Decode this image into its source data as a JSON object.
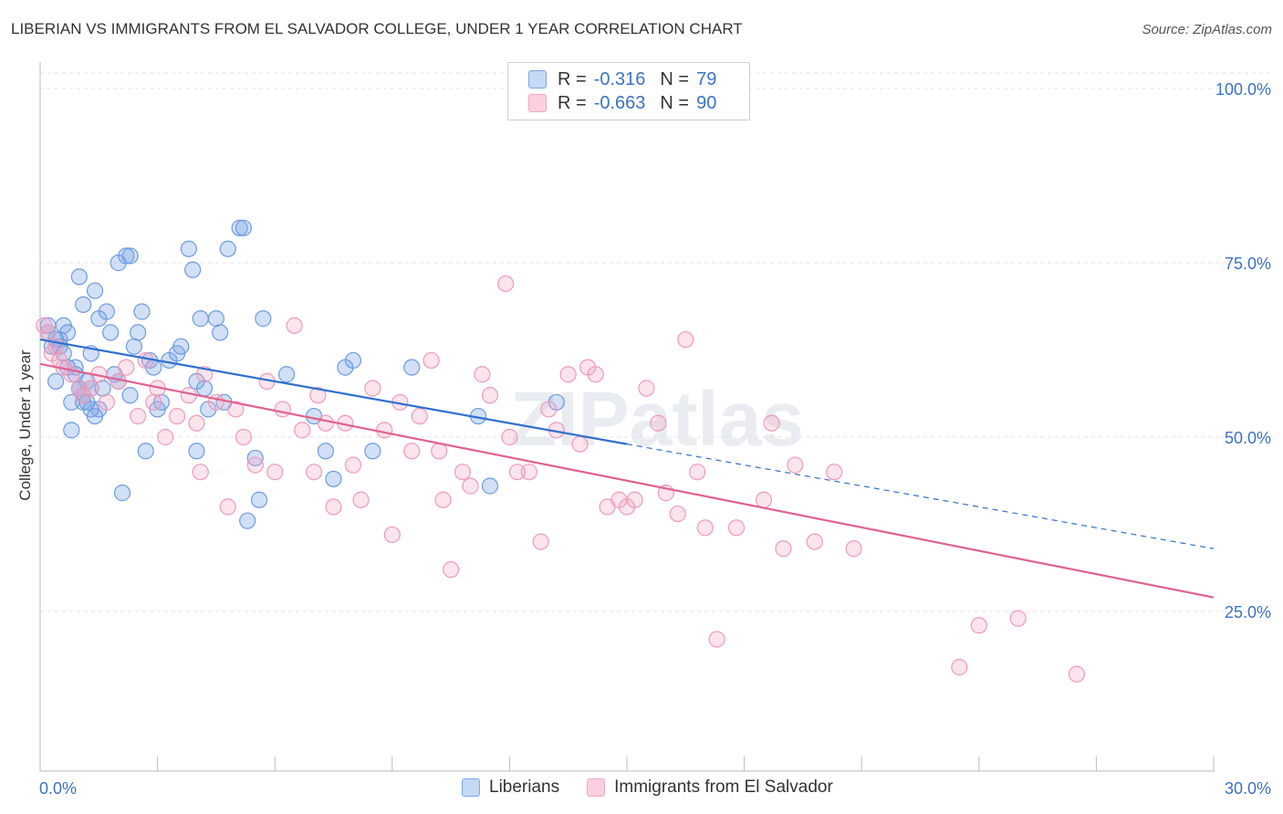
{
  "title": "LIBERIAN VS IMMIGRANTS FROM EL SALVADOR COLLEGE, UNDER 1 YEAR CORRELATION CHART",
  "source": "Source: ZipAtlas.com",
  "watermark": "ZIPatlas",
  "legend": {
    "rows": [
      {
        "r_label": "R =",
        "r_value": "-0.316",
        "n_label": "N =",
        "n_value": "79"
      },
      {
        "r_label": "R =",
        "r_value": "-0.663",
        "n_label": "N =",
        "n_value": "90"
      }
    ]
  },
  "bottom_legend": [
    "Liberians",
    "Immigrants from El Salvador"
  ],
  "chart_data": {
    "type": "scatter",
    "title": "LIBERIAN VS IMMIGRANTS FROM EL SALVADOR COLLEGE, UNDER 1 YEAR CORRELATION CHART",
    "xlabel": "",
    "ylabel": "College, Under 1 year",
    "xlim": [
      0,
      30
    ],
    "ylim": [
      0,
      105
    ],
    "x_tick_labels": [
      "0.0%",
      "30.0%"
    ],
    "y_ticks": [
      25,
      50,
      75,
      100
    ],
    "y_tick_labels": [
      "25.0%",
      "50.0%",
      "75.0%",
      "100.0%"
    ],
    "grid": true,
    "colors": {
      "Liberians": "#7aa7e8",
      "Immigrants from El Salvador": "#f3a6c0",
      "blue_line": "#2f6fcf",
      "pink_line": "#e0628e",
      "axis_label": "#3b72c4"
    },
    "series": [
      {
        "name": "Liberians",
        "points": [
          [
            0.2,
            65
          ],
          [
            0.3,
            63
          ],
          [
            0.4,
            58
          ],
          [
            0.5,
            64
          ],
          [
            0.6,
            66
          ],
          [
            0.7,
            65
          ],
          [
            0.8,
            55
          ],
          [
            0.8,
            51
          ],
          [
            0.9,
            60
          ],
          [
            1.0,
            73
          ],
          [
            1.0,
            57
          ],
          [
            1.1,
            69
          ],
          [
            1.1,
            55
          ],
          [
            1.2,
            58
          ],
          [
            1.3,
            62
          ],
          [
            1.3,
            57
          ],
          [
            1.4,
            71
          ],
          [
            1.5,
            54
          ],
          [
            1.5,
            67
          ],
          [
            1.6,
            57
          ],
          [
            1.7,
            68
          ],
          [
            1.8,
            65
          ],
          [
            1.9,
            59
          ],
          [
            2.0,
            58
          ],
          [
            2.0,
            75
          ],
          [
            2.1,
            42
          ],
          [
            2.2,
            76
          ],
          [
            2.3,
            56
          ],
          [
            2.3,
            76
          ],
          [
            2.4,
            63
          ],
          [
            2.5,
            65
          ],
          [
            2.6,
            68
          ],
          [
            2.7,
            48
          ],
          [
            2.8,
            61
          ],
          [
            2.9,
            60
          ],
          [
            3.0,
            54
          ],
          [
            3.1,
            55
          ],
          [
            3.3,
            61
          ],
          [
            3.5,
            62
          ],
          [
            3.6,
            63
          ],
          [
            3.8,
            77
          ],
          [
            3.9,
            74
          ],
          [
            4.0,
            48
          ],
          [
            4.0,
            58
          ],
          [
            4.1,
            67
          ],
          [
            4.2,
            57
          ],
          [
            4.3,
            54
          ],
          [
            4.5,
            67
          ],
          [
            4.6,
            65
          ],
          [
            4.7,
            55
          ],
          [
            4.8,
            77
          ],
          [
            5.1,
            80
          ],
          [
            5.2,
            80
          ],
          [
            5.3,
            38
          ],
          [
            5.5,
            47
          ],
          [
            5.6,
            41
          ],
          [
            5.7,
            67
          ],
          [
            6.3,
            59
          ],
          [
            7.0,
            53
          ],
          [
            7.3,
            48
          ],
          [
            7.5,
            44
          ],
          [
            7.8,
            60
          ],
          [
            8.0,
            61
          ],
          [
            8.5,
            48
          ],
          [
            9.5,
            60
          ],
          [
            11.2,
            53
          ],
          [
            11.5,
            43
          ],
          [
            13.2,
            55
          ],
          [
            0.2,
            66
          ],
          [
            0.4,
            64
          ],
          [
            0.5,
            63
          ],
          [
            0.6,
            62
          ],
          [
            0.7,
            60
          ],
          [
            0.9,
            59
          ],
          [
            1.0,
            57
          ],
          [
            1.1,
            56
          ],
          [
            1.2,
            55
          ],
          [
            1.3,
            54
          ],
          [
            1.4,
            53
          ]
        ]
      },
      {
        "name": "Immigrants from El Salvador",
        "points": [
          [
            0.1,
            66
          ],
          [
            0.2,
            65
          ],
          [
            0.3,
            62
          ],
          [
            0.4,
            63
          ],
          [
            0.5,
            61
          ],
          [
            0.6,
            60
          ],
          [
            0.8,
            59
          ],
          [
            1.0,
            57
          ],
          [
            1.1,
            56
          ],
          [
            1.3,
            57
          ],
          [
            1.5,
            59
          ],
          [
            1.7,
            55
          ],
          [
            2.0,
            58
          ],
          [
            2.2,
            60
          ],
          [
            2.5,
            53
          ],
          [
            2.7,
            61
          ],
          [
            2.9,
            55
          ],
          [
            3.0,
            57
          ],
          [
            3.2,
            50
          ],
          [
            3.5,
            53
          ],
          [
            3.8,
            56
          ],
          [
            4.0,
            52
          ],
          [
            4.1,
            45
          ],
          [
            4.2,
            59
          ],
          [
            4.5,
            55
          ],
          [
            4.8,
            40
          ],
          [
            5.0,
            54
          ],
          [
            5.2,
            50
          ],
          [
            5.5,
            46
          ],
          [
            5.8,
            58
          ],
          [
            6.0,
            45
          ],
          [
            6.2,
            54
          ],
          [
            6.5,
            66
          ],
          [
            6.7,
            51
          ],
          [
            7.0,
            45
          ],
          [
            7.1,
            56
          ],
          [
            7.3,
            52
          ],
          [
            7.5,
            40
          ],
          [
            7.8,
            52
          ],
          [
            8.0,
            46
          ],
          [
            8.2,
            41
          ],
          [
            8.5,
            57
          ],
          [
            8.8,
            51
          ],
          [
            9.0,
            36
          ],
          [
            9.2,
            55
          ],
          [
            9.5,
            48
          ],
          [
            9.7,
            53
          ],
          [
            10.0,
            61
          ],
          [
            10.2,
            48
          ],
          [
            10.3,
            41
          ],
          [
            10.5,
            31
          ],
          [
            10.8,
            45
          ],
          [
            11.0,
            43
          ],
          [
            11.3,
            59
          ],
          [
            11.5,
            56
          ],
          [
            11.9,
            72
          ],
          [
            12.0,
            50
          ],
          [
            12.2,
            45
          ],
          [
            12.5,
            45
          ],
          [
            12.8,
            35
          ],
          [
            13.0,
            54
          ],
          [
            13.2,
            51
          ],
          [
            13.5,
            59
          ],
          [
            13.8,
            49
          ],
          [
            14.0,
            60
          ],
          [
            14.2,
            59
          ],
          [
            14.5,
            40
          ],
          [
            14.8,
            41
          ],
          [
            15.0,
            40
          ],
          [
            15.2,
            41
          ],
          [
            15.5,
            57
          ],
          [
            15.8,
            52
          ],
          [
            16.0,
            42
          ],
          [
            16.3,
            39
          ],
          [
            16.5,
            64
          ],
          [
            16.8,
            45
          ],
          [
            17.0,
            37
          ],
          [
            17.3,
            21
          ],
          [
            17.8,
            37
          ],
          [
            18.5,
            41
          ],
          [
            18.7,
            52
          ],
          [
            19.0,
            34
          ],
          [
            19.3,
            46
          ],
          [
            19.8,
            35
          ],
          [
            20.3,
            45
          ],
          [
            20.8,
            34
          ],
          [
            23.5,
            17
          ],
          [
            24.0,
            23
          ],
          [
            25.0,
            24
          ],
          [
            26.5,
            16
          ]
        ]
      }
    ],
    "trend_lines": [
      {
        "name": "Liberians",
        "x_solid": [
          0,
          15
        ],
        "y_solid": [
          64,
          49
        ],
        "x_dashed": [
          15,
          30
        ],
        "y_dashed": [
          49,
          34
        ]
      },
      {
        "name": "Immigrants from El Salvador",
        "x_solid": [
          0,
          30
        ],
        "y_solid": [
          60.5,
          27
        ]
      }
    ]
  }
}
